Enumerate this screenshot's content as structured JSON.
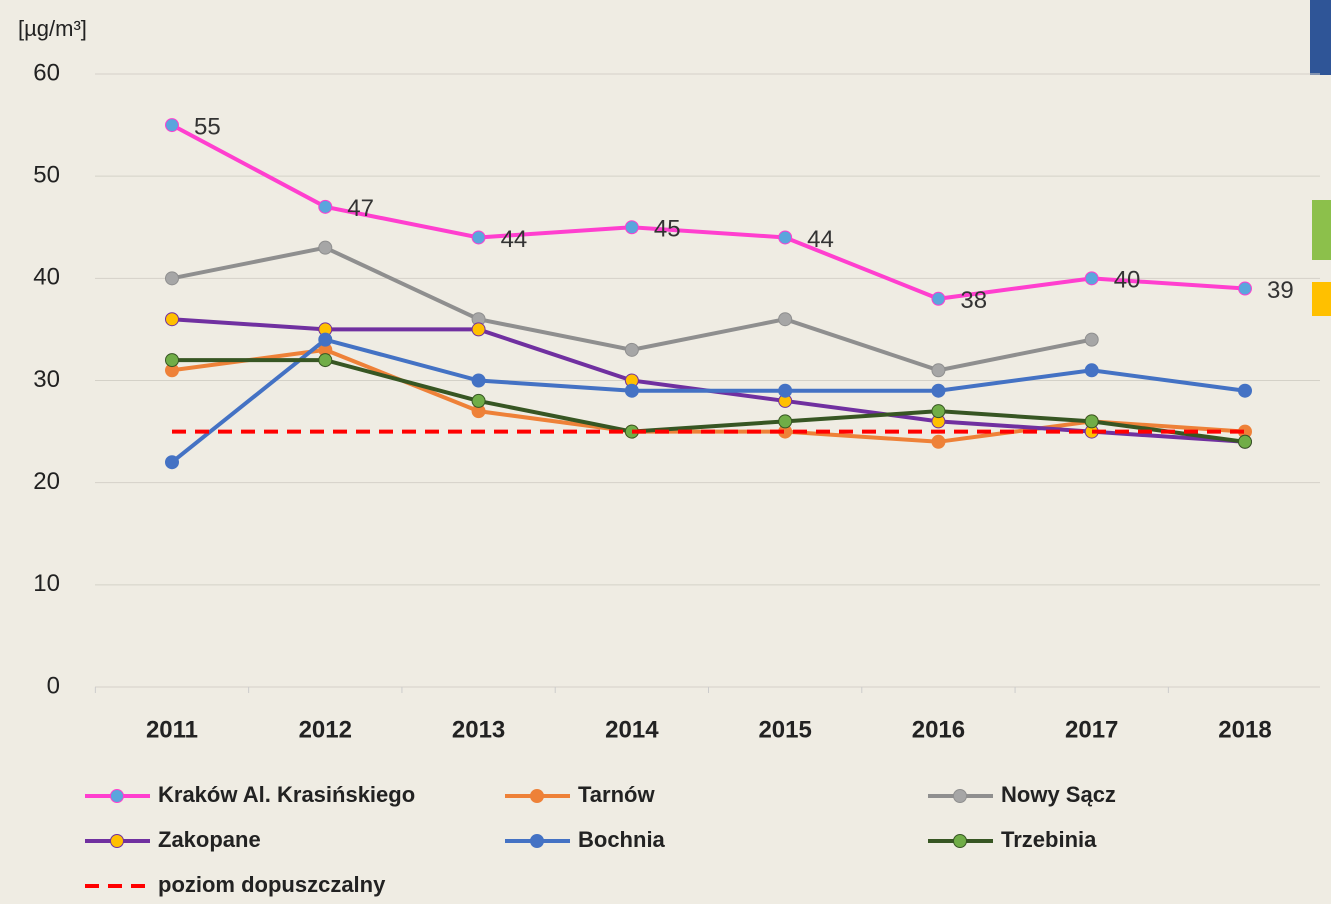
{
  "chart_data": {
    "type": "line",
    "y_label": "[µg/m³]",
    "categories": [
      "2011",
      "2012",
      "2013",
      "2014",
      "2015",
      "2016",
      "2017",
      "2018"
    ],
    "ylim": [
      0,
      60
    ],
    "yticks": [
      0,
      10,
      20,
      30,
      40,
      50,
      60
    ],
    "grid": true,
    "series": [
      {
        "name": "Kraków Al. Krasińskiego",
        "color": "#ff3fcf",
        "marker_color": "#5aa5dd",
        "values": [
          55,
          47,
          44,
          45,
          44,
          38,
          40,
          39
        ],
        "data_labels": true
      },
      {
        "name": "Tarnów",
        "color": "#ee8138",
        "marker_color": "#ee8138",
        "values": [
          31,
          33,
          27,
          25,
          25,
          24,
          26,
          25
        ]
      },
      {
        "name": "Nowy Sącz",
        "color": "#8f8f8f",
        "marker_color": "#a6a6a6",
        "values": [
          40,
          43,
          36,
          33,
          36,
          31,
          34,
          null
        ]
      },
      {
        "name": "Zakopane",
        "color": "#7030a0",
        "marker_color": "#ffc000",
        "values": [
          36,
          35,
          35,
          30,
          28,
          26,
          25,
          24
        ]
      },
      {
        "name": "Bochnia",
        "color": "#4472c4",
        "marker_color": "#4472c4",
        "values": [
          22,
          34,
          30,
          29,
          29,
          29,
          31,
          29
        ]
      },
      {
        "name": "Trzebinia",
        "color": "#375623",
        "marker_color": "#70ad47",
        "values": [
          32,
          32,
          28,
          25,
          26,
          27,
          26,
          24
        ]
      },
      {
        "name": "poziom dopuszczalny",
        "color": "#ff0000",
        "dash": true,
        "values": [
          25,
          25,
          25,
          25,
          25,
          25,
          25,
          25
        ]
      }
    ]
  }
}
